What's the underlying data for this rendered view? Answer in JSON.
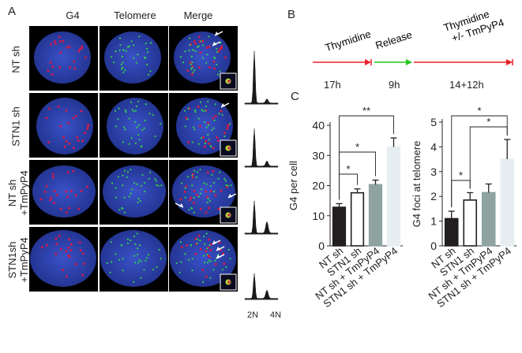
{
  "panel_a": {
    "letter": "A",
    "columns": [
      "G4",
      "Telomere",
      "Merge"
    ],
    "rows": [
      "NT sh",
      "STN1 sh",
      "NT sh\n+TmPyP4",
      "STN1sh\n+TmPyP4"
    ],
    "ploidy_labels": [
      "2N",
      "4N"
    ],
    "histogram_peaks": [
      {
        "main": 1.0,
        "second": 0.08
      },
      {
        "main": 0.72,
        "second": 0.1
      },
      {
        "main": 0.62,
        "second": 0.22
      },
      {
        "main": 0.48,
        "second": 0.16
      }
    ],
    "colors": {
      "nucleus": "#2a3fae",
      "g4": "#d01a4a",
      "telomere": "#35d14a",
      "arrow": "#ffffff"
    }
  },
  "panel_b": {
    "letter": "B",
    "steps": [
      {
        "label": "Thymidine",
        "duration": "17h",
        "color": "#e8202a"
      },
      {
        "label": "Release",
        "duration": "9h",
        "color": "#26c71c"
      },
      {
        "label": "Thymidine\n+/- TmPyP4",
        "duration": "14+12h",
        "color": "#e8202a"
      }
    ]
  },
  "panel_c": {
    "letter": "C"
  },
  "chart_data": [
    {
      "type": "bar",
      "ylabel": "G4 per cell",
      "ylim": [
        0,
        40
      ],
      "yticks": [
        0,
        10,
        20,
        30,
        40
      ],
      "categories": [
        "NT sh",
        "STN1 sh",
        "NT sh + TmPyP4",
        "STN1 sh + TmPyP4"
      ],
      "values": [
        12.8,
        17.6,
        20.3,
        32.8
      ],
      "errors": [
        1.2,
        1.3,
        1.5,
        3.0
      ],
      "bar_colors": [
        "#231f20",
        "#ffffff",
        "#8fa4a1",
        "#e6eef2"
      ],
      "bar_edges": [
        "#231f20",
        "#231f20",
        "#8fa4a1",
        "#e6eef2"
      ],
      "significance": [
        {
          "from": 0,
          "to": 1,
          "label": "*"
        },
        {
          "from": 0,
          "to": 2,
          "label": "*"
        },
        {
          "from": 0,
          "to": 3,
          "label": "**"
        }
      ]
    },
    {
      "type": "bar",
      "ylabel": "G4 foci at telomere",
      "ylim": [
        0,
        5
      ],
      "yticks": [
        0,
        1,
        2,
        3,
        4,
        5
      ],
      "categories": [
        "NT sh",
        "STN1 sh",
        "NT sh + TmPyP4",
        "STN1 sh + TmPyP4"
      ],
      "values": [
        1.1,
        1.85,
        2.15,
        3.5
      ],
      "errors": [
        0.3,
        0.3,
        0.35,
        0.8
      ],
      "bar_colors": [
        "#231f20",
        "#ffffff",
        "#8fa4a1",
        "#e6eef2"
      ],
      "bar_edges": [
        "#231f20",
        "#231f20",
        "#8fa4a1",
        "#e6eef2"
      ],
      "significance": [
        {
          "from": 0,
          "to": 1,
          "label": "*"
        },
        {
          "from": 1,
          "to": 3,
          "label": "*"
        },
        {
          "from": 0,
          "to": 3,
          "label": "*"
        }
      ]
    }
  ]
}
